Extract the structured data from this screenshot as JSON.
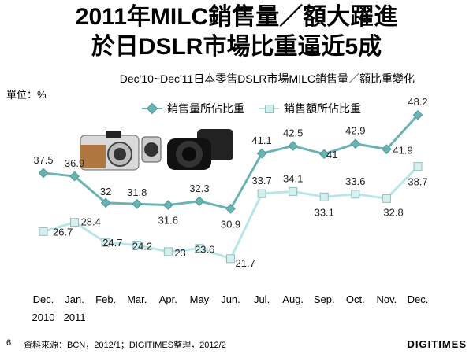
{
  "header": {
    "title_line1": "2011年MILC銷售量／額大躍進",
    "title_line2": "於日DSLR市場比重逼近5成",
    "subtitle": "Dec'10~Dec'11日本零售DSLR市場MILC銷售量／額比重變化",
    "unit": "單位：%"
  },
  "footer": {
    "page_number": "6",
    "source": "資料來源：BCN，2012/1；DIGITIMES整理，2012/2",
    "logo": "DIGITIMES"
  },
  "colors": {
    "series1": "#6bb3b3",
    "series2": "#b8e6e6"
  },
  "chart_data": {
    "type": "line",
    "title": "Dec'10~Dec'11日本零售DSLR市場MILC銷售量／額比重變化",
    "ylabel": "單位：%",
    "categories": [
      "Dec.",
      "Jan.",
      "Feb.",
      "Mar.",
      "Apr.",
      "May",
      "Jun.",
      "Jul.",
      "Aug.",
      "Sep.",
      "Oct.",
      "Nov.",
      "Dec."
    ],
    "year_labels": [
      "2010",
      "2011"
    ],
    "ylim": [
      15,
      52
    ],
    "legend_position": "top",
    "grid": false,
    "series": [
      {
        "name": "銷售量所佔比重",
        "marker": "diamond",
        "values": [
          37.5,
          36.9,
          32,
          31.8,
          31.6,
          32.3,
          30.9,
          41.1,
          42.5,
          41,
          42.9,
          41.9,
          48.2
        ],
        "labels": [
          "37.5",
          "36.9",
          "32",
          "31.8",
          "31.6",
          "32.3",
          "30.9",
          "41.1",
          "42.5",
          "41",
          "42.9",
          "41.9",
          "48.2"
        ]
      },
      {
        "name": "銷售額所佔比重",
        "marker": "square",
        "values": [
          26.7,
          28.4,
          24.7,
          24.2,
          23,
          23.6,
          21.7,
          33.7,
          34.1,
          33.1,
          33.6,
          32.8,
          38.7
        ],
        "labels": [
          "26.7",
          "28.4",
          "24.7",
          "24.2",
          "23",
          "23.6",
          "21.7",
          "33.7",
          "34.1",
          "33.1",
          "33.6",
          "32.8",
          "38.7"
        ]
      }
    ]
  }
}
